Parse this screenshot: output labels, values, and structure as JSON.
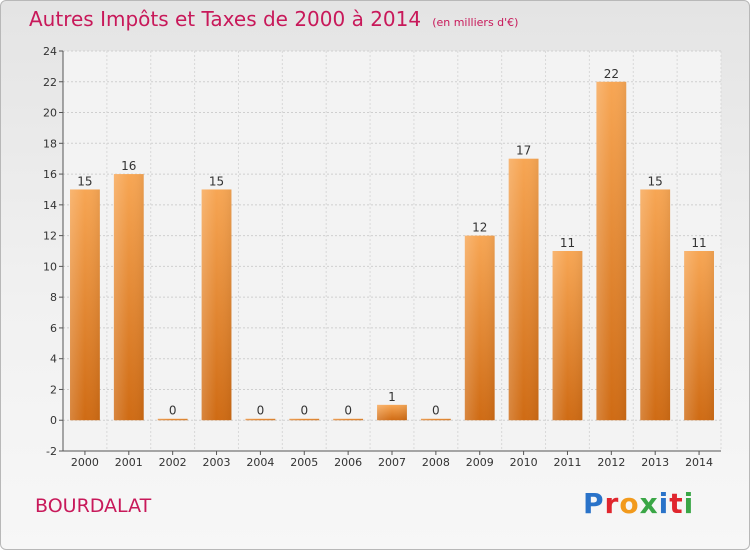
{
  "chart_data": {
    "type": "bar",
    "title": "Autres Impôts et Taxes de 2000 à 2014",
    "subtitle": "(en milliers d'€)",
    "categories": [
      "2000",
      "2001",
      "2002",
      "2003",
      "2004",
      "2005",
      "2006",
      "2007",
      "2008",
      "2009",
      "2010",
      "2011",
      "2012",
      "2013",
      "2014"
    ],
    "values": [
      15,
      16,
      0,
      15,
      0,
      0,
      0,
      1,
      0,
      12,
      17,
      11,
      22,
      15,
      11
    ],
    "data_labels": [
      "15",
      "16",
      "0",
      "15",
      "0",
      "0",
      "0",
      "1",
      "0",
      "12",
      "17",
      "11",
      "22",
      "15",
      "11"
    ],
    "ylim": [
      -2,
      24
    ],
    "yticks": [
      -2,
      0,
      2,
      4,
      6,
      8,
      10,
      12,
      14,
      16,
      18,
      20,
      22,
      24
    ],
    "grid": true,
    "bar_color": "#e8862a"
  },
  "footer": {
    "commune": "BOURDALAT",
    "logo": "Proxiti"
  }
}
